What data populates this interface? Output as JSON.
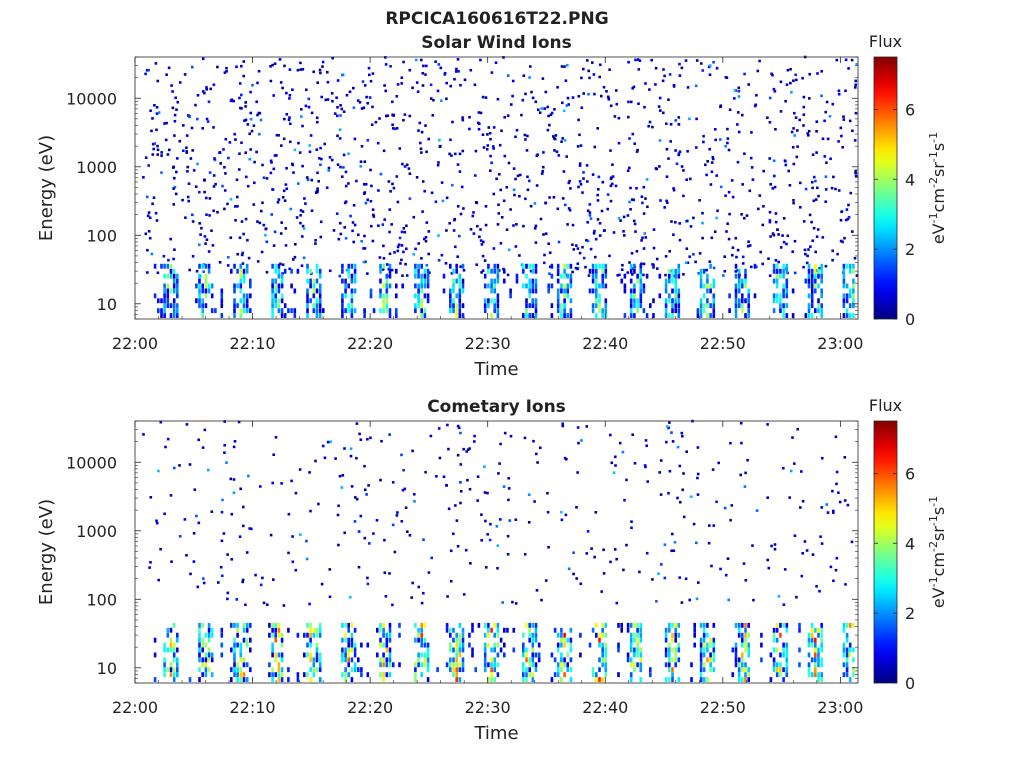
{
  "figure": {
    "title": "RPCICA160616T22.PNG"
  },
  "chart_data": [
    {
      "type": "heatmap",
      "title": "Solar Wind Ions",
      "xlabel": "Time",
      "ylabel": "Energy (eV)",
      "x_ticks": [
        "22:00",
        "22:10",
        "22:20",
        "22:30",
        "22:40",
        "22:50",
        "23:00"
      ],
      "x_tick_minutes": [
        0,
        10,
        20,
        30,
        40,
        50,
        60
      ],
      "xlim_minutes": [
        0,
        61.5
      ],
      "y_scale": "log",
      "y_ticks": [
        "10",
        "100",
        "1000",
        "10000"
      ],
      "y_tick_values": [
        10,
        100,
        1000,
        10000
      ],
      "ylim": [
        6,
        40000
      ],
      "colorbar": {
        "label_top": "Flux",
        "label_parts": [
          "eV",
          "-1",
          "cm",
          "-2",
          "sr",
          "-1",
          "s",
          "-1"
        ],
        "range": [
          0,
          7.5
        ],
        "ticks": [
          "0",
          "2",
          "4",
          "6"
        ],
        "tick_values": [
          0,
          2,
          4,
          6
        ],
        "colormap": "jet"
      },
      "background_events_per_minute": 22,
      "band_flux_max": 4.2,
      "band_top_eV": 30
    },
    {
      "type": "heatmap",
      "title": "Cometary Ions",
      "xlabel": "Time",
      "ylabel": "Energy (eV)",
      "x_ticks": [
        "22:00",
        "22:10",
        "22:20",
        "22:30",
        "22:40",
        "22:50",
        "23:00"
      ],
      "x_tick_minutes": [
        0,
        10,
        20,
        30,
        40,
        50,
        60
      ],
      "xlim_minutes": [
        0,
        61.5
      ],
      "y_scale": "log",
      "y_ticks": [
        "10",
        "100",
        "1000",
        "10000"
      ],
      "y_tick_values": [
        10,
        100,
        1000,
        10000
      ],
      "ylim": [
        6,
        40000
      ],
      "colorbar": {
        "label_top": "Flux",
        "label_parts": [
          "eV",
          "-1",
          "cm",
          "-2",
          "sr",
          "-1",
          "s",
          "-1"
        ],
        "range": [
          0,
          7.5
        ],
        "ticks": [
          "0",
          "2",
          "4",
          "6"
        ],
        "tick_values": [
          0,
          2,
          4,
          6
        ],
        "colormap": "jet"
      },
      "background_events_per_minute": 7,
      "band_flux_max": 6.2,
      "band_top_eV": 35
    }
  ]
}
